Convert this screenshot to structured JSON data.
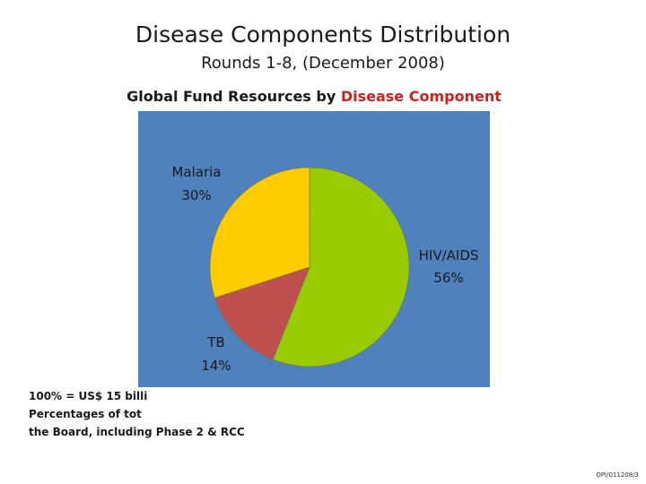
{
  "slide": {
    "title": "Disease Components Distribution",
    "subtitle": "Rounds 1-8, (December 2008)",
    "chart_title_prefix": "Global Fund Resources by ",
    "chart_title_accent": "Disease Component",
    "footnote_lines": [
      "100% = US$ 15 billi",
      "Percentages of tot",
      "the Board, including Phase 2 & RCC"
    ],
    "slide_code": "OPI/011208/3"
  },
  "chart_data": {
    "type": "pie",
    "title": "Global Fund Resources by Disease Component",
    "slices": [
      {
        "label": "HIV/AIDS",
        "value": 56,
        "value_label": "56%",
        "color": "#99cc00"
      },
      {
        "label": "TB",
        "value": 14,
        "value_label": "14%",
        "color": "#c0504d"
      },
      {
        "label": "Malaria",
        "value": 30,
        "value_label": "30%",
        "color": "#ffcc00"
      }
    ],
    "background": "#4f81bd"
  }
}
